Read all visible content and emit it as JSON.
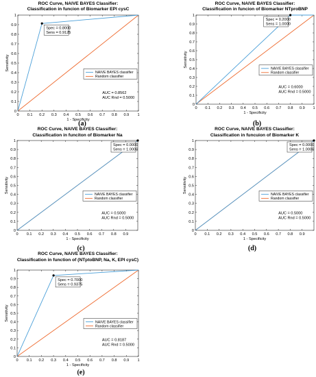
{
  "chart_data": [
    {
      "type": "line",
      "panel_label": "(a)",
      "title": "ROC Curve, NAIVE BAYES  Classifier:",
      "subtitle": "Classification in funcion of Biomarker EPI cysC",
      "xlabel": "1 - Specificity",
      "ylabel": "Sensitivity",
      "xlim": [
        0,
        1
      ],
      "ylim": [
        0,
        1
      ],
      "xticks": [
        "0",
        "0.1",
        "0.2",
        "0.3",
        "0.4",
        "0.5",
        "0.6",
        "0.7",
        "0.8",
        "0.9",
        "1"
      ],
      "yticks": [
        "0",
        "0.1",
        "0.2",
        "0.3",
        "0.4",
        "0.5",
        "0.6",
        "0.7",
        "0.8",
        "0.9",
        "1"
      ],
      "series": [
        {
          "name": "NAIVE BAYES classifier",
          "color": "#4a9fd8",
          "x": [
            0,
            0.2,
            1
          ],
          "y": [
            0,
            0.9125,
            1
          ]
        },
        {
          "name": "Random classifier",
          "color": "#ee6a2e",
          "x": [
            0,
            1
          ],
          "y": [
            0,
            1
          ]
        }
      ],
      "legend": "lower-right",
      "marker": {
        "x": 0.2,
        "y": 0.9125
      },
      "annotation": [
        "Spec = 0.8000",
        "Sens = 0.9125"
      ],
      "auc_lines": [
        "AUC         = 0.8562",
        "AUC Rnd = 0.5000"
      ]
    },
    {
      "type": "line",
      "panel_label": "(b)",
      "title": "ROC Curve, NAIVE BAYES  Classifier:",
      "subtitle": "Classification in funcion of Biomarker NTproBNP",
      "xlabel": "1 - Specificity",
      "ylabel": "Sensitivity",
      "xlim": [
        0,
        1
      ],
      "ylim": [
        0,
        1
      ],
      "xticks": [
        "0",
        "0.1",
        "0.2",
        "0.3",
        "0.4",
        "0.5",
        "0.6",
        "0.7",
        "0.8",
        "0.9",
        "1"
      ],
      "yticks": [
        "0",
        "0.1",
        "0.2",
        "0.3",
        "0.4",
        "0.5",
        "0.6",
        "0.7",
        "0.8",
        "0.9",
        "1"
      ],
      "series": [
        {
          "name": "NAIVE BAYES classifier",
          "color": "#4a9fd8",
          "x": [
            0,
            0.8,
            1
          ],
          "y": [
            0,
            1,
            1
          ]
        },
        {
          "name": "Random classifier",
          "color": "#ee6a2e",
          "x": [
            0,
            1
          ],
          "y": [
            0,
            1
          ]
        }
      ],
      "legend": "lower-right",
      "marker": {
        "x": 0.8,
        "y": 1
      },
      "annotation": [
        "Spec = 0.2000",
        "Sens = 1.0000"
      ],
      "auc_lines": [
        "AUC         = 0.6000",
        "AUC Rnd = 0.5000"
      ]
    },
    {
      "type": "line",
      "panel_label": "(c)",
      "title": "ROC Curve, NAIVE BAYES  Classifier:",
      "subtitle": "Classification in funciton of Biomarker Na",
      "xlabel": "1 - Specificity",
      "ylabel": "Sensitivity",
      "xlim": [
        0,
        1
      ],
      "ylim": [
        0,
        1
      ],
      "xticks": [
        "0",
        "0.1",
        "0.2",
        "0.3",
        "0.4",
        "0.5",
        "0.6",
        "0.7",
        "0.8",
        "0.9"
      ],
      "yticks": [
        "0",
        "0.1",
        "0.2",
        "0.3",
        "0.4",
        "0.5",
        "0.6",
        "0.7",
        "0.8",
        "0.9",
        "1"
      ],
      "series": [
        {
          "name": "NAIVE BAYES classifier",
          "color": "#4a9fd8",
          "x": [
            0,
            1
          ],
          "y": [
            0,
            1
          ]
        },
        {
          "name": "Random classifier",
          "color": "#ee6a2e",
          "x": [
            0,
            1
          ],
          "y": [
            0,
            1
          ]
        }
      ],
      "legend": "lower-right",
      "marker": {
        "x": 1,
        "y": 1
      },
      "annotation": [
        "Spec = 0.0000",
        "Sens = 1.0000"
      ],
      "auc_lines": [
        "AUC         = 0.5000",
        "AUC Rnd = 0.5000"
      ]
    },
    {
      "type": "line",
      "panel_label": "(d)",
      "title": "ROC Curve, NAIVE BAYES  Classifier:",
      "subtitle": "Classification in funcuion of  Biomarker K",
      "xlabel": "1 - Specificity",
      "ylabel": "Sensitivity",
      "xlim": [
        0,
        1
      ],
      "ylim": [
        0,
        1
      ],
      "xticks": [
        "0",
        "0.1",
        "0.2",
        "0.3",
        "0.4",
        "0.5",
        "0.6",
        "0.7",
        "0.8",
        "0.9"
      ],
      "yticks": [
        "0",
        "0.1",
        "0.2",
        "0.3",
        "0.4",
        "0.5",
        "0.6",
        "0.7",
        "0.8",
        "0.9",
        "1"
      ],
      "series": [
        {
          "name": "NAIVE BAYES classifier",
          "color": "#4a9fd8",
          "x": [
            0,
            1
          ],
          "y": [
            0,
            1
          ]
        },
        {
          "name": "Random classifier",
          "color": "#ee6a2e",
          "x": [
            0,
            1
          ],
          "y": [
            0,
            1
          ]
        }
      ],
      "legend": "lower-right",
      "marker": {
        "x": 1,
        "y": 1
      },
      "annotation": [
        "Spec = 0.0000",
        "Sens = 1.0000"
      ],
      "auc_lines": [
        "AUC         = 0.5000",
        "AUC Rnd = 0.5000"
      ]
    },
    {
      "type": "line",
      "panel_label": "(e)",
      "title": "ROC Curve, NAIVE BAYES  Classifier:",
      "subtitle": "Classification in function of (NTptoBNP, Na, K, EPI cysC)",
      "xlabel": "1 - Specificity",
      "ylabel": "Sensitivity",
      "xlim": [
        0,
        1
      ],
      "ylim": [
        0,
        1
      ],
      "xticks": [
        "0",
        "0.1",
        "0.2",
        "0.3",
        "0.4",
        "0.5",
        "0.6",
        "0.7",
        "0.8",
        "0.9",
        "1"
      ],
      "yticks": [
        "0",
        "0.1",
        "0.2",
        "0.3",
        "0.4",
        "0.5",
        "0.6",
        "0.7",
        "0.8",
        "0.9",
        "1"
      ],
      "series": [
        {
          "name": "NAIVE BAYES classifier",
          "color": "#4a9fd8",
          "x": [
            0,
            0.3,
            1
          ],
          "y": [
            0,
            0.9375,
            1
          ]
        },
        {
          "name": "Random classifier",
          "color": "#ee6a2e",
          "x": [
            0,
            1
          ],
          "y": [
            0,
            1
          ]
        }
      ],
      "legend": "lower-right",
      "marker": {
        "x": 0.3,
        "y": 0.9375
      },
      "annotation": [
        "Spec = 0.7000",
        "Sens = 0.9375"
      ],
      "auc_lines": [
        "AUC         = 0.8187",
        "AUC Rnd = 0.5000"
      ]
    }
  ]
}
